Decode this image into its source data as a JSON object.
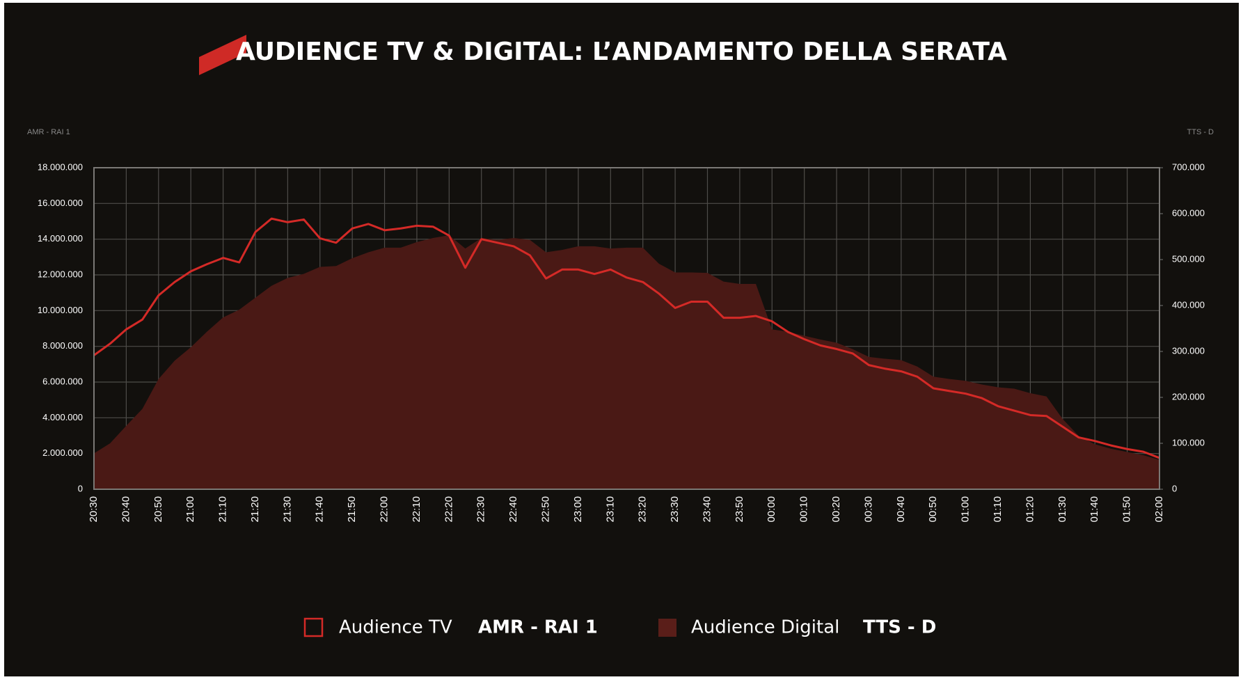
{
  "chart_data": {
    "type": "line",
    "title": "AUDIENCE TV & DIGITAL: L’ANDAMENTO DELLA SERATA",
    "y_label": "AMR - RAI 1",
    "y2_label": "TTS - D",
    "categories": [
      "20:30",
      null,
      "20:40",
      null,
      "20:50",
      null,
      "21:00",
      null,
      "21:10",
      null,
      "21:20",
      null,
      "21:30",
      null,
      "21:40",
      null,
      "21:50",
      null,
      "22:00",
      null,
      "22:10",
      null,
      "22:20",
      null,
      "22:30",
      null,
      "22:40",
      null,
      "22:50",
      null,
      "23:00",
      null,
      "23:10",
      null,
      "23:20",
      null,
      "23:30",
      null,
      "23:40",
      null,
      "23:50",
      null,
      "00:00",
      null,
      "00:10",
      null,
      "00:20",
      null,
      "00:30",
      null,
      "00:40",
      null,
      "00:50",
      null,
      "01:00",
      null,
      "01:10",
      null,
      "01:20",
      null,
      "01:30",
      null,
      "01:40",
      null,
      "01:50",
      null,
      "02:00"
    ],
    "series": [
      {
        "name": "Audience Digital",
        "type": "area",
        "axis": "y2",
        "color": "#4a1915",
        "values": [
          78000,
          100000,
          138000,
          175000,
          240000,
          280000,
          309000,
          343000,
          374000,
          391000,
          417000,
          443000,
          460000,
          469000,
          484000,
          486000,
          503000,
          516000,
          526000,
          526000,
          538000,
          547000,
          553000,
          524000,
          547000,
          543000,
          547000,
          543000,
          516000,
          521000,
          529000,
          529000,
          524000,
          526000,
          526000,
          491000,
          472000,
          472000,
          471000,
          452000,
          447000,
          447000,
          348000,
          343000,
          334000,
          326000,
          319000,
          305000,
          288000,
          284000,
          281000,
          267000,
          245000,
          240000,
          236000,
          228000,
          222000,
          219000,
          209000,
          202000,
          153000,
          116000,
          98000,
          88000,
          81000,
          74000,
          64000
        ]
      },
      {
        "name": "Audience TV",
        "type": "line",
        "axis": "y",
        "color": "#d42a27",
        "values": [
          7500000,
          8150000,
          8950000,
          9500000,
          10850000,
          11600000,
          12200000,
          12600000,
          12950000,
          12700000,
          14400000,
          15150000,
          14950000,
          15100000,
          14050000,
          13800000,
          14600000,
          14850000,
          14500000,
          14600000,
          14750000,
          14700000,
          14200000,
          12400000,
          14000000,
          13800000,
          13600000,
          13100000,
          11800000,
          12300000,
          12300000,
          12050000,
          12300000,
          11850000,
          11600000,
          10950000,
          10150000,
          10500000,
          10500000,
          9600000,
          9600000,
          9700000,
          9400000,
          8800000,
          8400000,
          8050000,
          7850000,
          7600000,
          6950000,
          6750000,
          6600000,
          6300000,
          5650000,
          5500000,
          5350000,
          5100000,
          4650000,
          4400000,
          4150000,
          4100000,
          3500000,
          2900000,
          2700000,
          2450000,
          2250000,
          2100000,
          1750000
        ]
      }
    ],
    "ylim": [
      0,
      18000000
    ],
    "yticks": [
      0,
      {
        "value": 2000000,
        "label": "2.000.000"
      },
      {
        "value": 4000000,
        "label": "4.000.000"
      },
      {
        "value": 6000000,
        "label": "6.000.000"
      },
      {
        "value": 8000000,
        "label": "8.000.000"
      },
      {
        "value": 10000000,
        "label": "10.000.000"
      },
      {
        "value": 12000000,
        "label": "12.000.000"
      },
      {
        "value": 14000000,
        "label": "14.000.000"
      },
      {
        "value": 16000000,
        "label": "16.000.000"
      },
      {
        "value": 18000000,
        "label": "18.000.000"
      }
    ],
    "y2lim": [
      0,
      700000
    ],
    "y2ticks": [
      0,
      {
        "value": 100000,
        "label": "100.000"
      },
      {
        "value": 200000,
        "label": "200.000"
      },
      {
        "value": 300000,
        "label": "300.000"
      },
      {
        "value": 400000,
        "label": "400.000"
      },
      {
        "value": 500000,
        "label": "500.000"
      },
      {
        "value": 600000,
        "label": "600.000"
      },
      {
        "value": 700000,
        "label": "700.000"
      }
    ],
    "grid": true
  }
}
